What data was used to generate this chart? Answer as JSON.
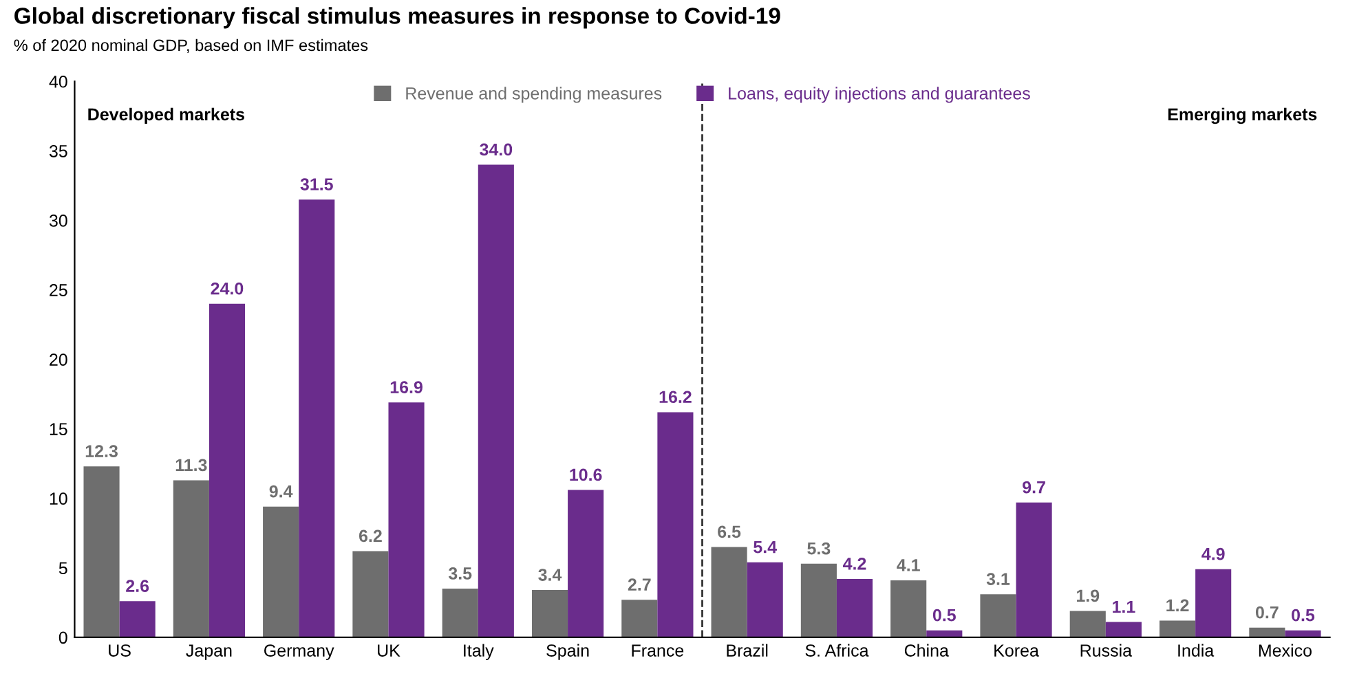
{
  "chart_data": {
    "type": "bar",
    "title": "Global discretionary fiscal stimulus measures in response to Covid-19",
    "subtitle": "% of 2020 nominal GDP, based on IMF estimates",
    "categories": [
      "US",
      "Japan",
      "Germany",
      "UK",
      "Italy",
      "Spain",
      "France",
      "Brazil",
      "S. Africa",
      "China",
      "Korea",
      "Russia",
      "India",
      "Mexico"
    ],
    "series": [
      {
        "name": "Revenue and spending measures",
        "color": "#6e6e6e",
        "values": [
          12.3,
          11.3,
          9.4,
          6.2,
          3.5,
          3.4,
          2.7,
          6.5,
          5.3,
          4.1,
          3.1,
          1.9,
          1.2,
          0.7
        ],
        "value_labels": [
          "12.3",
          "11.3",
          "9.4",
          "6.2",
          "3.5",
          "3.4",
          "2.7",
          "6.5",
          "5.3",
          "4.1",
          "3.1",
          "1.9",
          "1.2",
          "0.7"
        ]
      },
      {
        "name": "Loans, equity injections and guarantees",
        "color": "#6a2c8c",
        "values": [
          2.6,
          24.0,
          31.5,
          16.9,
          34.0,
          10.6,
          16.2,
          5.4,
          4.2,
          0.5,
          9.7,
          1.1,
          4.9,
          0.5
        ],
        "value_labels": [
          "2.6",
          "24.0",
          "31.5",
          "16.9",
          "34.0",
          "10.6",
          "16.2",
          "5.4",
          "4.2",
          "0.5",
          "9.7",
          "1.1",
          "4.9",
          "0.5"
        ]
      }
    ],
    "ylim": [
      0,
      40
    ],
    "yticks": [
      0,
      5,
      10,
      15,
      20,
      25,
      30,
      35,
      40
    ],
    "grid": false,
    "legend": "top",
    "annotations": [
      "Developed markets",
      "Emerging markets"
    ]
  }
}
